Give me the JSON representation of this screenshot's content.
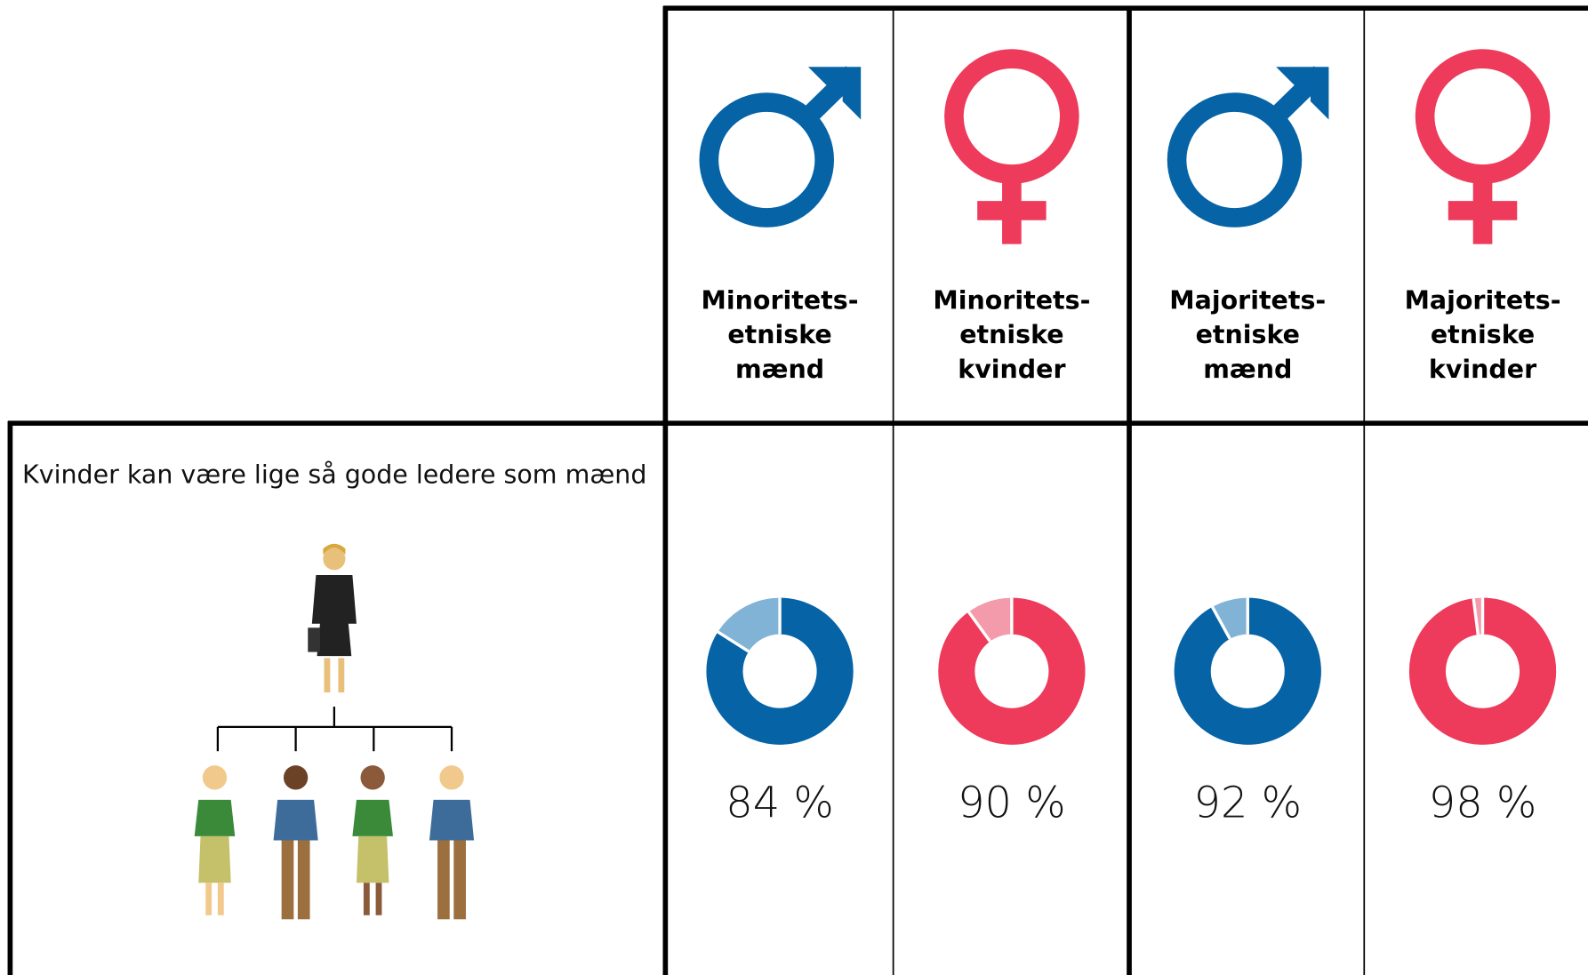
{
  "statement": "Kvinder kan være lige så gode ledere som mænd",
  "columns": [
    {
      "label": [
        "Minoritets-",
        "etniske",
        "mænd"
      ],
      "value": 84,
      "value_label": "84 %",
      "color": "#0563a6",
      "light_color": "#80b3d6"
    },
    {
      "label": [
        "Minoritets-",
        "etniske",
        "kvinder"
      ],
      "value": 90,
      "value_label": "90 %",
      "color": "#ee3a5b",
      "light_color": "#f49bab"
    },
    {
      "label": [
        "Majoritets-",
        "etniske",
        "mænd"
      ],
      "value": 92,
      "value_label": "92 %",
      "color": "#0563a6",
      "light_color": "#80b3d6"
    },
    {
      "label": [
        "Majoritets-",
        "etniske",
        "kvinder"
      ],
      "value": 98,
      "value_label": "98 %",
      "color": "#ee3a5b",
      "light_color": "#f49bab"
    }
  ]
}
